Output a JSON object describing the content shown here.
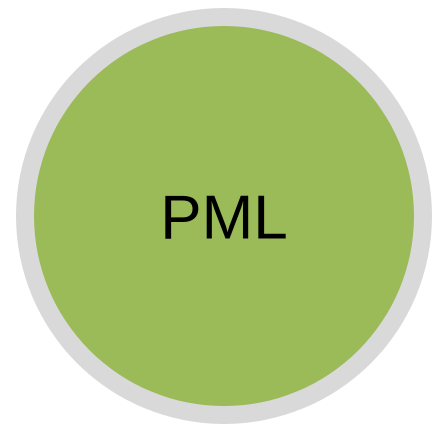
{
  "badge": {
    "label": "PML"
  }
}
